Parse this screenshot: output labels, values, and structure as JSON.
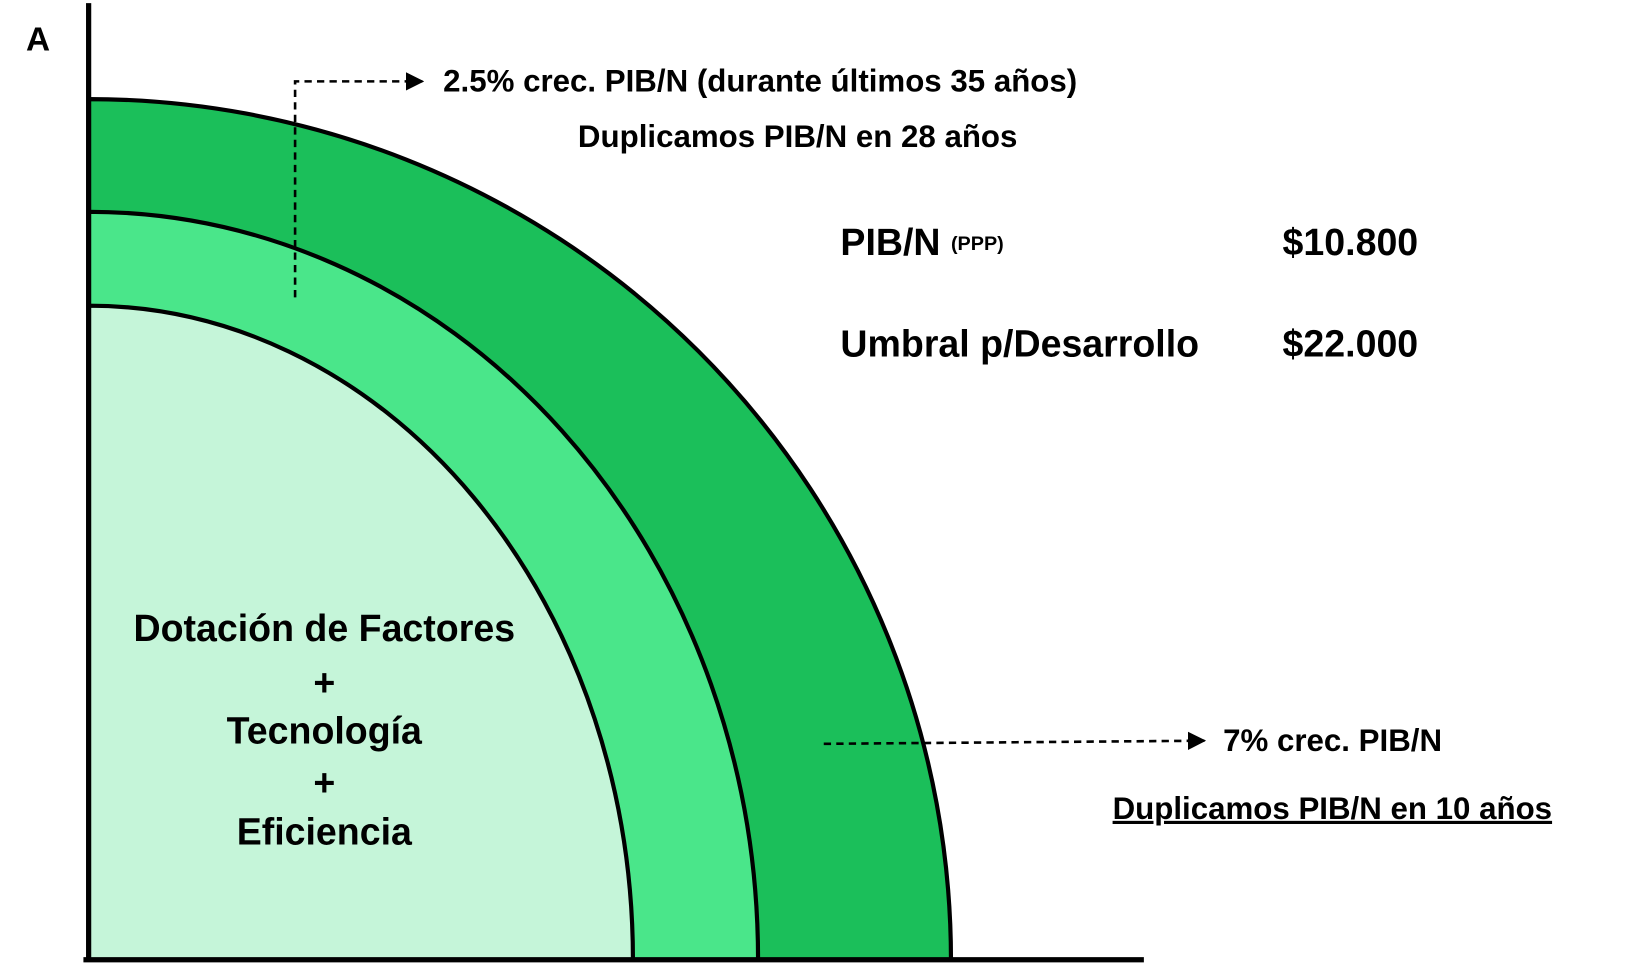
{
  "axis_label": "A",
  "top_note": {
    "line1": "2.5% crec. PIB/N (durante últimos 35 años)",
    "line2": "Duplicamos PIB/N en 28 años"
  },
  "stats": [
    {
      "label": "PIB/N",
      "qualifier": "(PPP)",
      "value": "$10.800"
    },
    {
      "label": "Umbral p/Desarrollo",
      "value": "$22.000"
    }
  ],
  "inner_text": [
    "Dotación de Factores",
    "+",
    "Tecnología",
    "+",
    "Eficiencia"
  ],
  "bottom_note": {
    "line1": "7% crec. PIB/N",
    "line2": "Duplicamos PIB/N en 10 años"
  }
}
